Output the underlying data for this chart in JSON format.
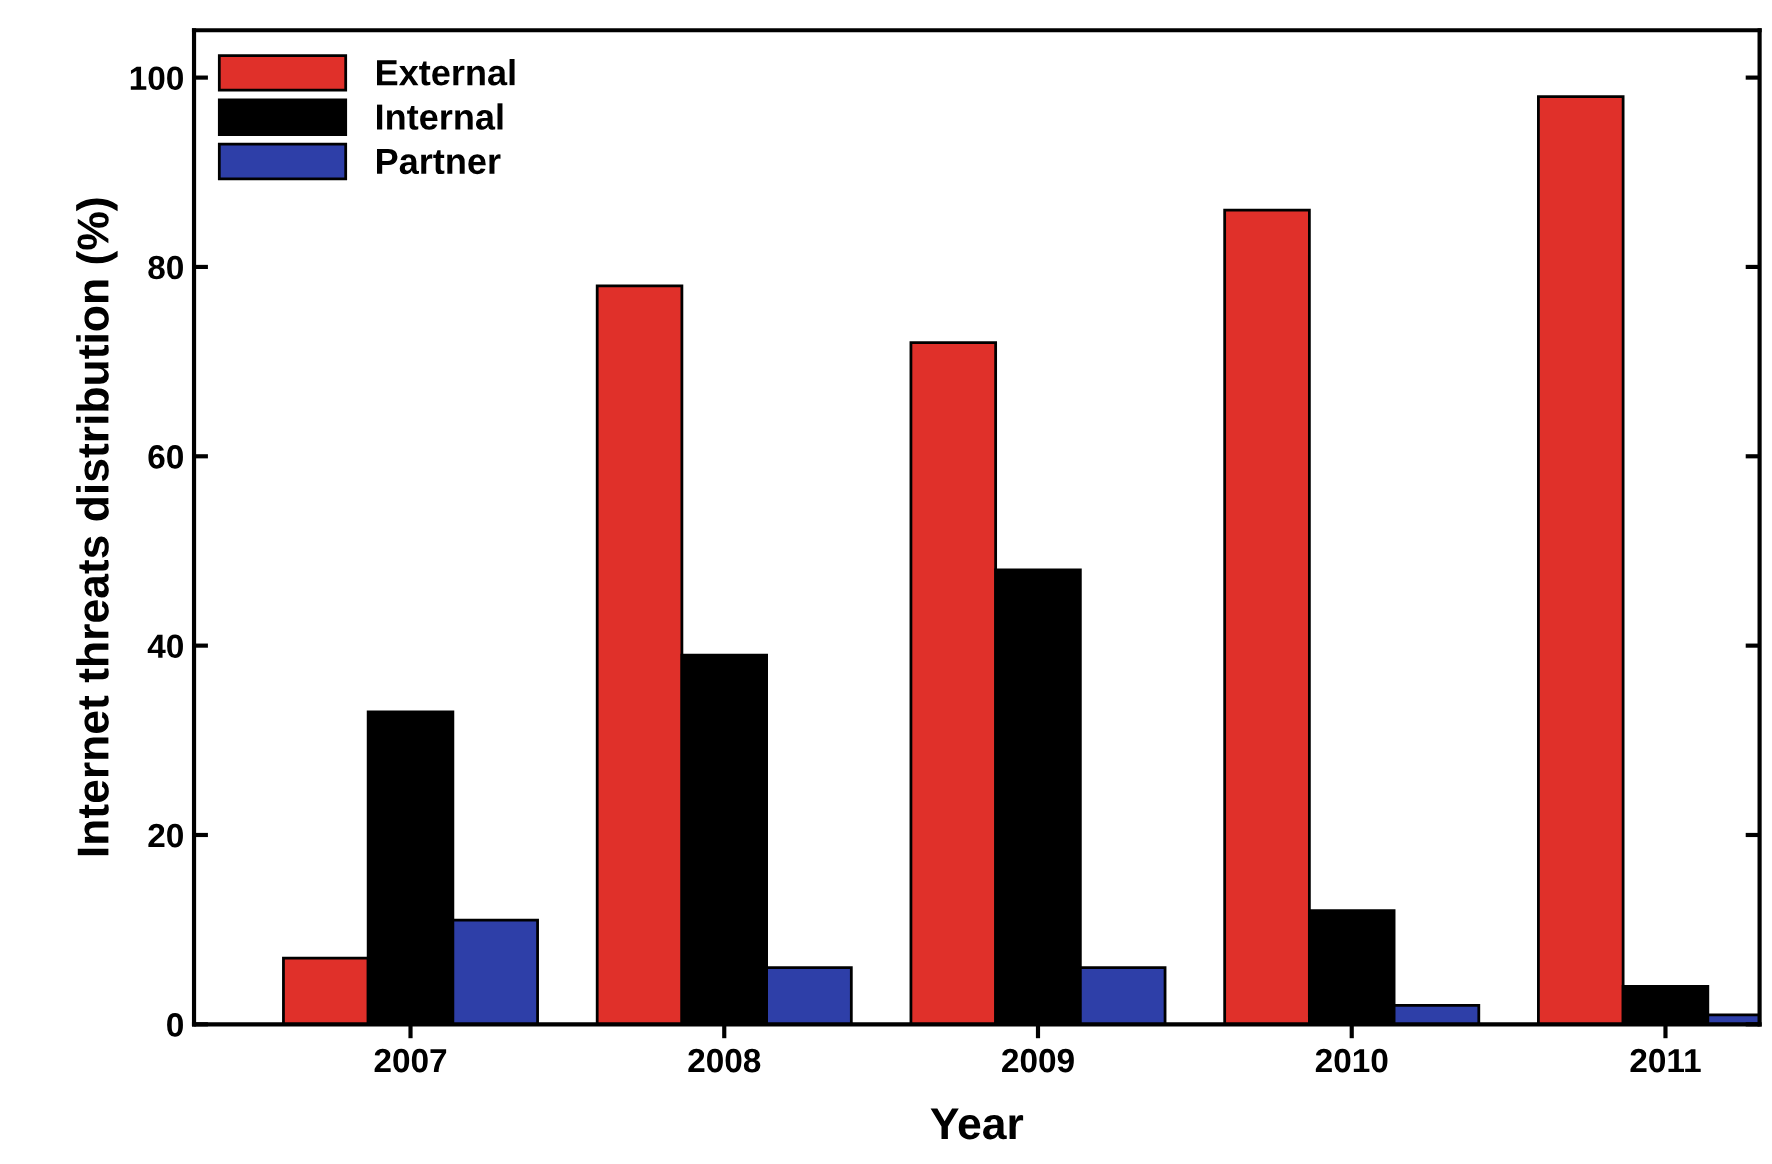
{
  "chart_data": {
    "type": "bar",
    "xlabel": "Year",
    "ylabel": "Internet threats distribution (%)",
    "categories": [
      "2007",
      "2008",
      "2009",
      "2010",
      "2011"
    ],
    "series": [
      {
        "name": "External",
        "color": "#e0302a",
        "values": [
          7,
          78,
          72,
          86,
          98
        ]
      },
      {
        "name": "Internal",
        "color": "#000000",
        "values": [
          33,
          39,
          48,
          12,
          4
        ]
      },
      {
        "name": "Partner",
        "color": "#2e3fa8",
        "values": [
          11,
          6,
          6,
          2,
          1
        ]
      }
    ],
    "ylim": [
      0,
      105
    ],
    "yticks": [
      0,
      20,
      40,
      60,
      80,
      100
    ],
    "grid": false,
    "legend": "top left"
  }
}
